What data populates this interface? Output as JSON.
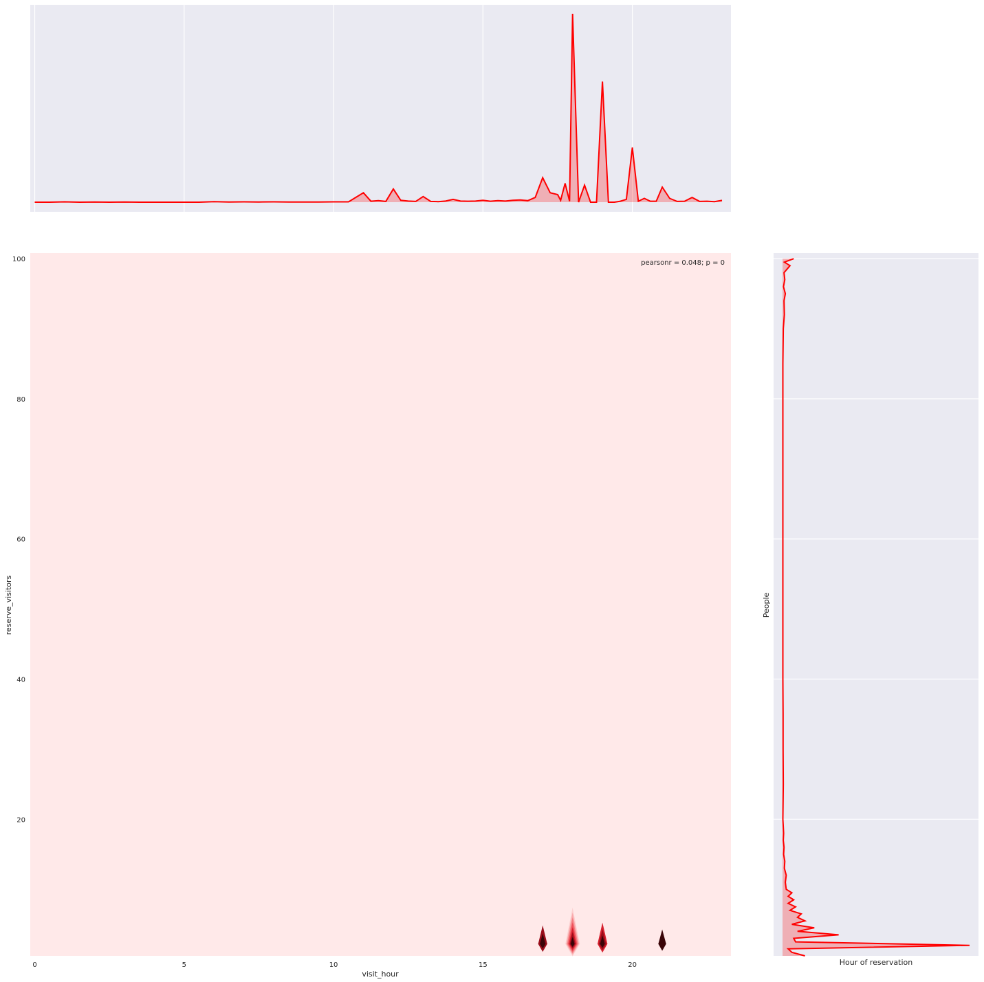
{
  "chart_data": [
    {
      "type": "area",
      "panel": "top-marginal",
      "title": "",
      "xlabel": "",
      "ylabel": "",
      "xlim": [
        -0.15,
        23.3
      ],
      "ylim": [
        0,
        1.0
      ],
      "grid": true,
      "x": [
        0,
        0.5,
        1,
        1.5,
        2,
        2.5,
        3,
        3.5,
        4,
        4.5,
        5,
        5.5,
        6,
        6.5,
        7,
        7.5,
        8,
        8.5,
        9,
        9.5,
        10,
        10.5,
        11,
        11.25,
        11.5,
        11.75,
        12,
        12.25,
        12.5,
        12.75,
        13,
        13.25,
        13.5,
        13.75,
        14,
        14.25,
        14.5,
        14.75,
        15,
        15.25,
        15.5,
        15.75,
        16,
        16.25,
        16.5,
        16.75,
        17,
        17.25,
        17.5,
        17.6,
        17.75,
        17.9,
        18,
        18.2,
        18.4,
        18.6,
        18.8,
        19,
        19.2,
        19.4,
        19.6,
        19.8,
        20,
        20.2,
        20.4,
        20.6,
        20.8,
        21,
        21.25,
        21.5,
        21.75,
        22,
        22.25,
        22.5,
        22.75,
        23
      ],
      "values": [
        0,
        0,
        0.002,
        0,
        0.001,
        0,
        0.001,
        0,
        0,
        0,
        0,
        0,
        0.003,
        0.001,
        0.002,
        0.001,
        0.002,
        0.001,
        0.001,
        0.001,
        0.002,
        0.002,
        0.05,
        0.005,
        0.008,
        0.004,
        0.07,
        0.01,
        0.006,
        0.004,
        0.03,
        0.004,
        0.003,
        0.006,
        0.015,
        0.006,
        0.005,
        0.006,
        0.01,
        0.005,
        0.008,
        0.006,
        0.01,
        0.012,
        0.008,
        0.025,
        0.13,
        0.05,
        0.04,
        0.01,
        0.1,
        0.005,
        1.0,
        0.0,
        0.09,
        0.0,
        0.0,
        0.64,
        0.0,
        0.0,
        0.005,
        0.015,
        0.29,
        0.005,
        0.02,
        0.005,
        0.005,
        0.08,
        0.02,
        0.004,
        0.005,
        0.025,
        0.004,
        0.005,
        0.003,
        0.01
      ],
      "color": "#ff0000",
      "x_ticks": [
        0,
        5,
        10,
        15,
        20
      ]
    },
    {
      "type": "heatmap",
      "panel": "joint-kde",
      "title": "",
      "xlabel": "visit_hour",
      "ylabel": "reserve_visitors",
      "xlim": [
        -0.15,
        23.3
      ],
      "ylim": [
        0.5,
        100.8
      ],
      "x_ticks": [
        0,
        5,
        10,
        15,
        20
      ],
      "y_ticks": [
        20,
        40,
        60,
        80,
        100
      ],
      "annotation": "pearsonr = 0.048; p = 0",
      "background": "#ffe9e9",
      "peaks": [
        {
          "x": 17,
          "y": 2.2,
          "level": 0.35
        },
        {
          "x": 18,
          "y": 2.2,
          "level": 1.0
        },
        {
          "x": 19,
          "y": 2.2,
          "level": 0.45
        },
        {
          "x": 21,
          "y": 2.2,
          "level": 0.2
        }
      ]
    },
    {
      "type": "area",
      "panel": "right-marginal",
      "title": "",
      "xlabel": "Hour of reservation",
      "ylabel": "People",
      "ylim": [
        0.5,
        100.8
      ],
      "xlim": [
        0,
        1.0
      ],
      "grid": true,
      "y": [
        0.5,
        1,
        1.5,
        2,
        2.5,
        3,
        3.5,
        4,
        4.5,
        5,
        5.5,
        6,
        6.5,
        7,
        7.5,
        8,
        8.5,
        9,
        9.5,
        10,
        11,
        12,
        13,
        14,
        15,
        16,
        17,
        18,
        20,
        25,
        30,
        35,
        40,
        45,
        50,
        55,
        60,
        65,
        70,
        75,
        80,
        85,
        90,
        92,
        94,
        95,
        96,
        97,
        98,
        99,
        99.5,
        100
      ],
      "values": [
        0.12,
        0.05,
        0.03,
        1.0,
        0.07,
        0.06,
        0.3,
        0.08,
        0.17,
        0.05,
        0.12,
        0.08,
        0.1,
        0.04,
        0.07,
        0.03,
        0.06,
        0.03,
        0.05,
        0.02,
        0.015,
        0.02,
        0.01,
        0.012,
        0.006,
        0.008,
        0.004,
        0.006,
        0.002,
        0.004,
        0.003,
        0.003,
        0.002,
        0.002,
        0.002,
        0.002,
        0.002,
        0.002,
        0.002,
        0.002,
        0.002,
        0.002,
        0.004,
        0.01,
        0.008,
        0.015,
        0.005,
        0.012,
        0.008,
        0.04,
        0.01,
        0.06
      ],
      "color": "#ff0000"
    }
  ]
}
